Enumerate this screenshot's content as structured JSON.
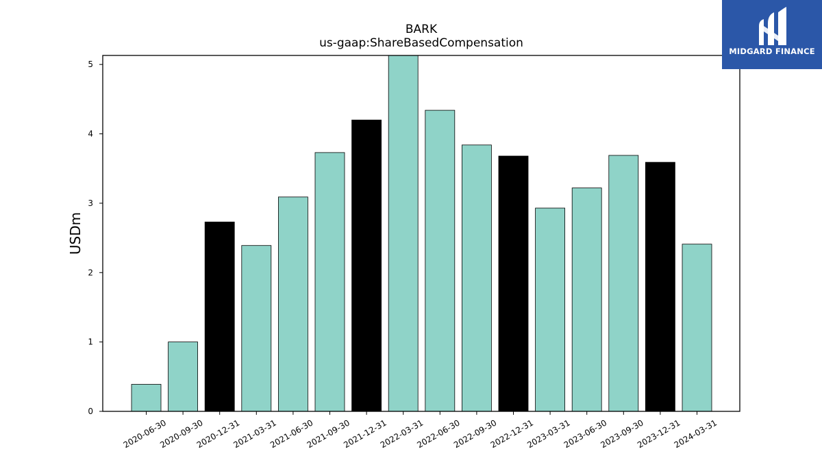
{
  "brand": {
    "name": "MIDGARD FINANCE",
    "logo_color": "#2b57a8"
  },
  "chart_data": {
    "type": "bar",
    "title": "BARK",
    "subtitle": "us-gaap:ShareBasedCompensation",
    "xlabel": "",
    "ylabel": "USDm",
    "ylim": [
      0,
      5.13
    ],
    "yticks": [
      0,
      1,
      2,
      3,
      4,
      5
    ],
    "grid": false,
    "categories": [
      "2020-06-30",
      "2020-09-30",
      "2020-12-31",
      "2021-03-31",
      "2021-06-30",
      "2021-09-30",
      "2021-12-31",
      "2022-03-31",
      "2022-06-30",
      "2022-09-30",
      "2022-12-31",
      "2023-03-31",
      "2023-06-30",
      "2023-09-30",
      "2023-12-31",
      "2024-03-31"
    ],
    "values": [
      0.39,
      1.0,
      2.73,
      2.39,
      3.09,
      3.73,
      4.2,
      5.13,
      4.34,
      3.84,
      3.68,
      2.93,
      3.22,
      3.69,
      3.59,
      2.41
    ],
    "bar_colors": [
      "#8fd3c8",
      "#8fd3c8",
      "#000000",
      "#8fd3c8",
      "#8fd3c8",
      "#8fd3c8",
      "#000000",
      "#8fd3c8",
      "#8fd3c8",
      "#8fd3c8",
      "#000000",
      "#8fd3c8",
      "#8fd3c8",
      "#8fd3c8",
      "#000000",
      "#8fd3c8"
    ]
  }
}
